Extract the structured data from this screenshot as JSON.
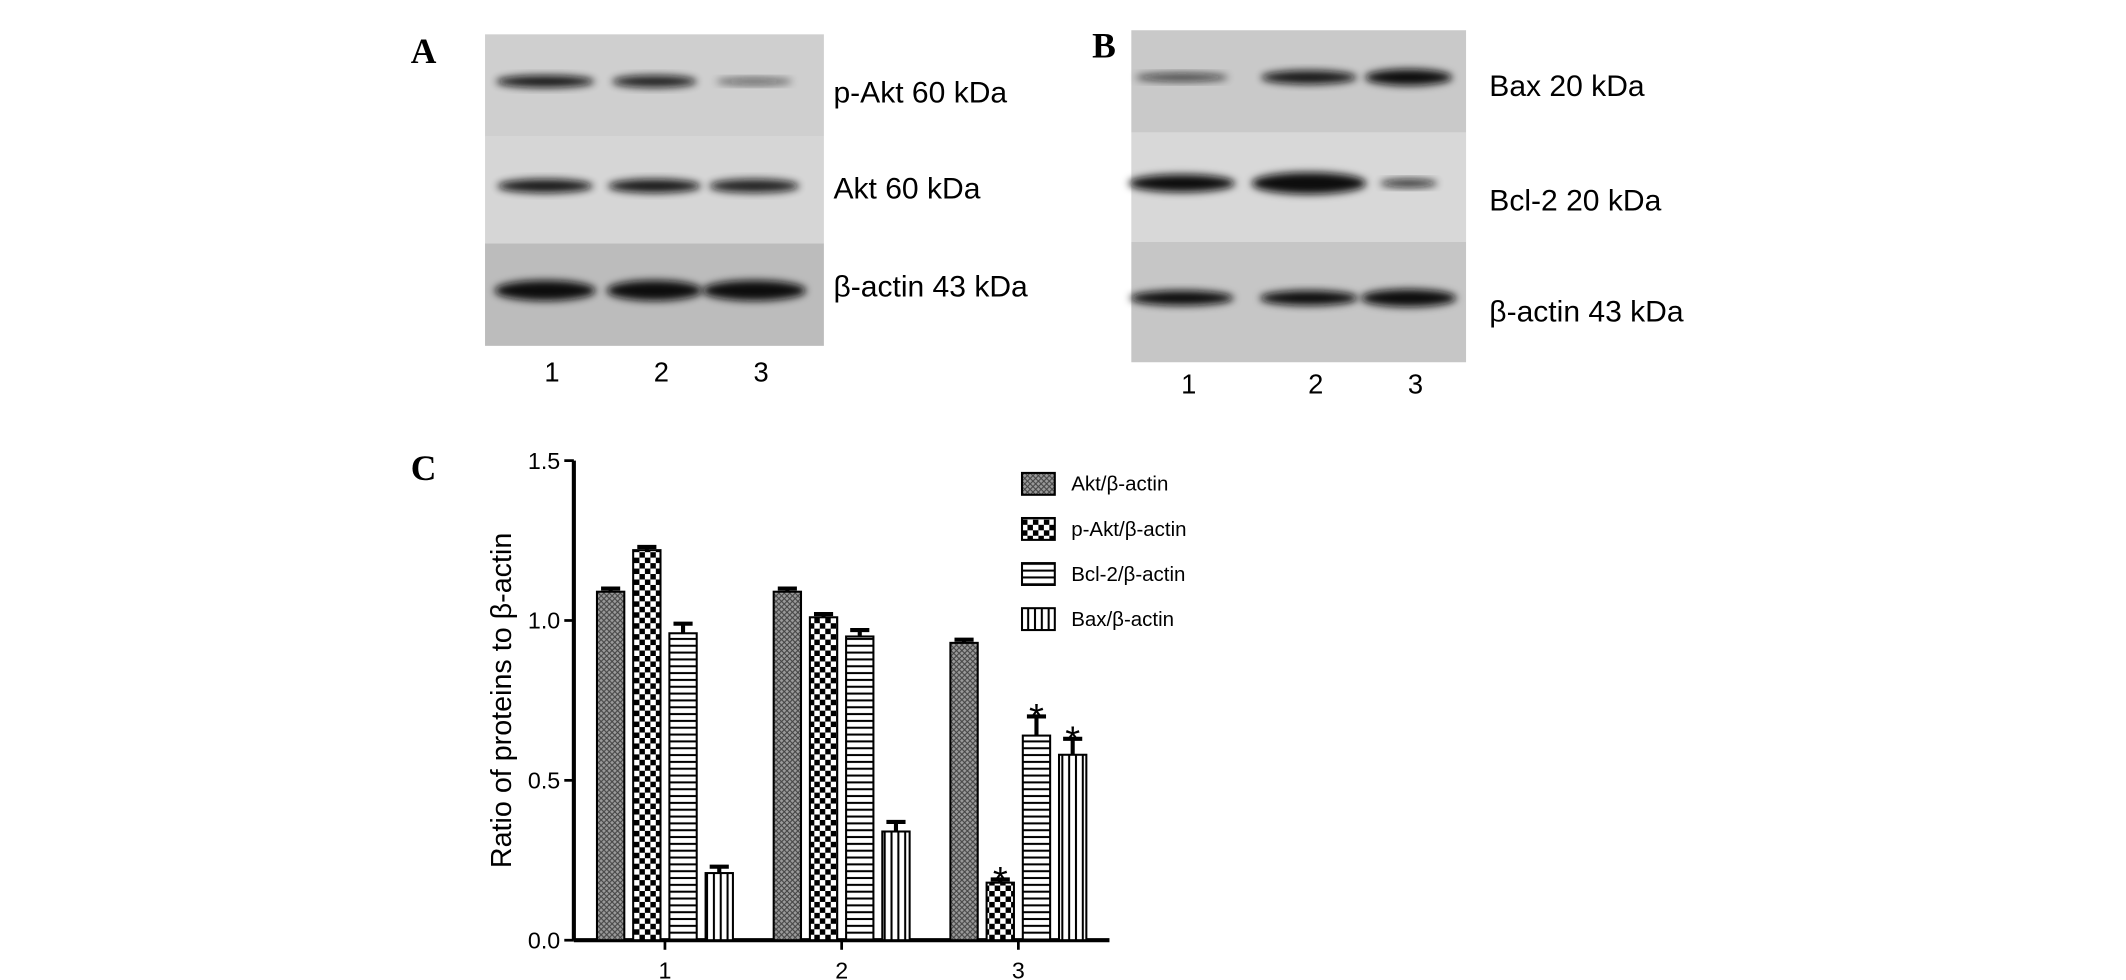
{
  "panels": [
    {
      "label": "A",
      "rows": [
        "p-Akt 60 kDa",
        "Akt 60 kDa",
        "β-actin 43 kDa"
      ],
      "lanes": [
        "1",
        "2",
        "3"
      ]
    },
    {
      "label": "B",
      "rows": [
        "Bax 20 kDa",
        "Bcl-2 20 kDa",
        "β-actin 43 kDa"
      ],
      "lanes": [
        "1",
        "2",
        "3"
      ]
    }
  ],
  "chart_data": {
    "type": "bar",
    "panel_label": "C",
    "y_label": "Ratio of proteins to β-actin",
    "categories": [
      "1",
      "2",
      "3"
    ],
    "series": [
      {
        "name": "Akt/β-actin",
        "color": "#000000",
        "pattern": "crosshatch",
        "values": [
          1.09,
          1.09,
          0.93
        ],
        "errors": [
          0.01,
          0.01,
          0.01
        ]
      },
      {
        "name": "p-Akt/β-actin",
        "color": "#000000",
        "pattern": "checker",
        "values": [
          1.22,
          1.01,
          0.18
        ],
        "errors": [
          0.01,
          0.01,
          0.01
        ],
        "significance": [
          null,
          null,
          "*"
        ]
      },
      {
        "name": "Bcl-2/β-actin",
        "color": "#000000",
        "pattern": "horizontal",
        "values": [
          0.96,
          0.95,
          0.64
        ],
        "errors": [
          0.03,
          0.02,
          0.06
        ],
        "significance": [
          null,
          null,
          "*"
        ]
      },
      {
        "name": "Bax/β-actin",
        "color": "#000000",
        "pattern": "vertical",
        "values": [
          0.21,
          0.34,
          0.58
        ],
        "errors": [
          0.02,
          0.03,
          0.05
        ],
        "significance": [
          null,
          null,
          "*"
        ]
      }
    ],
    "ylim": [
      0,
      1.5
    ],
    "yticks": [
      {
        "value": 0,
        "label": "0.0"
      },
      {
        "value": 0.5,
        "label": "0.5"
      },
      {
        "value": 1,
        "label": "1.0"
      },
      {
        "value": 1.5,
        "label": "1.5"
      }
    ],
    "legend": "upper right",
    "grid": false
  }
}
